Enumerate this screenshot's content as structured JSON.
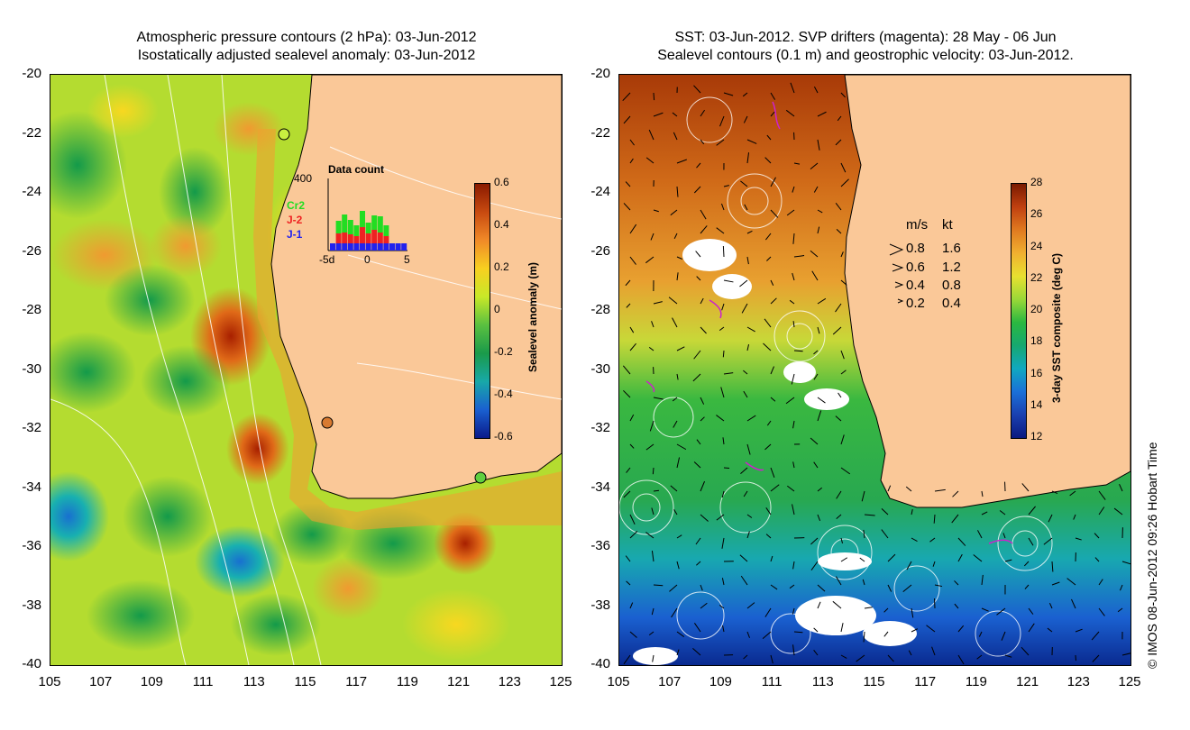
{
  "left_panel": {
    "title_line1": "Atmospheric pressure contours (2 hPa): 03-Jun-2012",
    "title_line2": "Isostatically adjusted sealevel anomaly: 03-Jun-2012",
    "colorbar": {
      "label": "Sealevel anomaly (m)",
      "ticks": [
        "0.6",
        "0.4",
        "0.2",
        "0",
        "-0.2",
        "-0.4",
        "-0.6"
      ],
      "colors": [
        "#8a1a00",
        "#c84a10",
        "#f08a28",
        "#f8d020",
        "#c8e828",
        "#5ac040",
        "#1a9a4a",
        "#18a8a8",
        "#1a60d0",
        "#0a1a8a"
      ]
    },
    "histogram": {
      "title": "Data count",
      "y_max": "400",
      "x_ticks": [
        "-5d",
        "0",
        "5"
      ],
      "series": [
        "Cr2",
        "J-2",
        "J-1"
      ],
      "series_colors": [
        "#22dd22",
        "#ee2222",
        "#2222ee"
      ],
      "bars": {
        "blue": [
          40,
          40,
          40,
          40,
          40,
          40,
          40,
          40,
          40,
          40,
          40,
          40,
          40
        ],
        "red": [
          0,
          55,
          60,
          50,
          40,
          90,
          55,
          75,
          60,
          40,
          0,
          0,
          0
        ],
        "green": [
          0,
          70,
          100,
          80,
          60,
          90,
          60,
          80,
          90,
          60,
          0,
          0,
          0
        ]
      }
    }
  },
  "right_panel": {
    "title_line1": "SST: 03-Jun-2012. SVP drifters (magenta): 28 May - 06 Jun",
    "title_line2": "Sealevel contours (0.1 m) and geostrophic velocity: 03-Jun-2012.",
    "colorbar": {
      "label": "3-day SST composite (deg C)",
      "ticks": [
        "28",
        "26",
        "24",
        "22",
        "20",
        "18",
        "16",
        "14",
        "12"
      ],
      "colors": [
        "#7a1a00",
        "#c04010",
        "#e07a20",
        "#f0b030",
        "#e8e030",
        "#9ad838",
        "#2ab840",
        "#16a870",
        "#10a8c0",
        "#1a70d8",
        "#1a40b0",
        "#0a1a80"
      ]
    },
    "velocity_legend": {
      "header_ms": "m/s",
      "header_kt": "kt",
      "rows": [
        {
          "ms": "0.8",
          "kt": "1.6"
        },
        {
          "ms": "0.6",
          "kt": "1.2"
        },
        {
          "ms": "0.4",
          "kt": "0.8"
        },
        {
          "ms": "0.2",
          "kt": "0.4"
        }
      ]
    }
  },
  "axes": {
    "y_labels": [
      "-20",
      "-22",
      "-24",
      "-26",
      "-28",
      "-30",
      "-32",
      "-34",
      "-36",
      "-38",
      "-40"
    ],
    "x_labels": [
      "105",
      "107",
      "109",
      "111",
      "113",
      "115",
      "117",
      "119",
      "121",
      "123",
      "125"
    ]
  },
  "credit": "© IMOS 08-Jun-2012 09:26 Hobart Time",
  "colors": {
    "land": "#fac898",
    "ocean_mid": "#44b844",
    "coast": "#000000",
    "contour": "#ffffff",
    "drifter": "#cc22cc"
  }
}
